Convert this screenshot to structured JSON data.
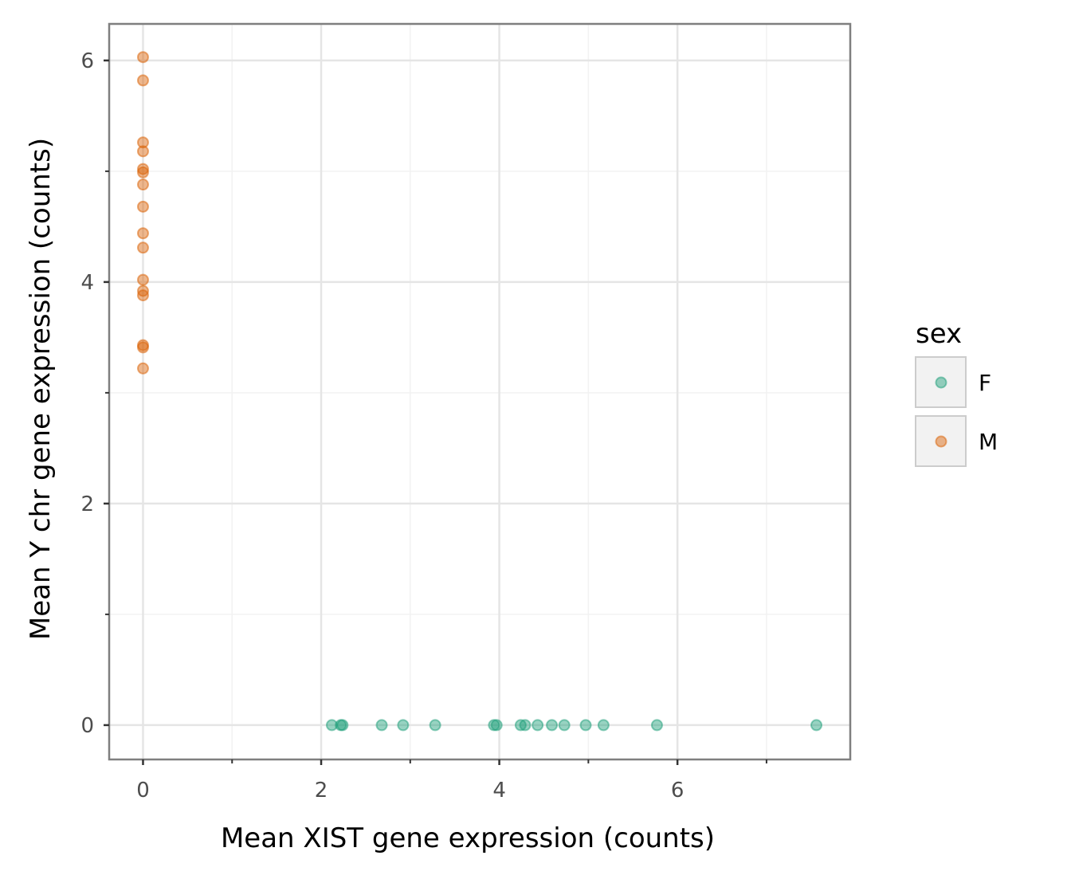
{
  "chart_data": {
    "type": "scatter",
    "title": "",
    "xlabel": "Mean XIST gene expression (counts)",
    "ylabel": "Mean Y chr gene expression (counts)",
    "xlim": [
      -0.38,
      7.94
    ],
    "ylim": [
      -0.31,
      6.33
    ],
    "x_ticks": [
      0,
      2,
      4,
      6
    ],
    "x_tick_labels": [
      "0",
      "2",
      "4",
      "6"
    ],
    "y_ticks": [
      0,
      2,
      4,
      6
    ],
    "y_tick_labels": [
      "0",
      "2",
      "4",
      "6"
    ],
    "grid": true,
    "legend": {
      "title": "sex",
      "position": "right",
      "entries": [
        {
          "label": "F",
          "color": "#1b9e77"
        },
        {
          "label": "M",
          "color": "#d95f02"
        }
      ]
    },
    "series": [
      {
        "name": "F",
        "color": "#1b9e77",
        "points": [
          [
            2.12,
            0
          ],
          [
            2.22,
            0
          ],
          [
            2.24,
            0
          ],
          [
            2.68,
            0
          ],
          [
            2.92,
            0
          ],
          [
            3.28,
            0
          ],
          [
            3.94,
            0
          ],
          [
            3.97,
            0
          ],
          [
            4.24,
            0
          ],
          [
            4.29,
            0
          ],
          [
            4.43,
            0
          ],
          [
            4.59,
            0
          ],
          [
            4.73,
            0
          ],
          [
            4.97,
            0
          ],
          [
            5.17,
            0
          ],
          [
            5.77,
            0
          ],
          [
            7.56,
            0
          ]
        ]
      },
      {
        "name": "M",
        "color": "#d95f02",
        "points": [
          [
            0,
            6.03
          ],
          [
            0,
            5.82
          ],
          [
            0,
            5.26
          ],
          [
            0,
            5.18
          ],
          [
            0,
            5.02
          ],
          [
            0,
            4.99
          ],
          [
            0,
            4.88
          ],
          [
            0,
            4.68
          ],
          [
            0,
            4.44
          ],
          [
            0,
            4.31
          ],
          [
            0,
            4.02
          ],
          [
            0,
            3.92
          ],
          [
            0,
            3.88
          ],
          [
            0,
            3.43
          ],
          [
            0,
            3.41
          ],
          [
            0,
            3.22
          ]
        ]
      }
    ]
  }
}
